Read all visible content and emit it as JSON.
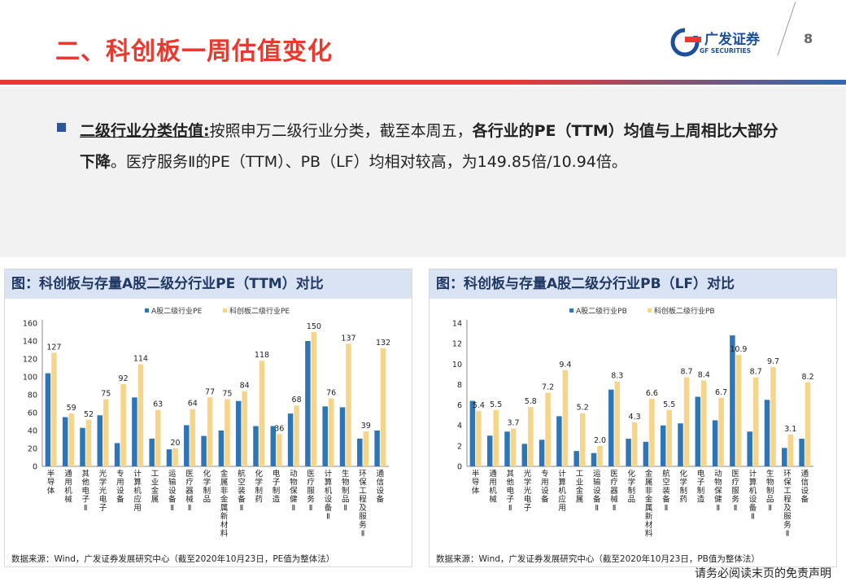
{
  "header": {
    "title": "二、科创板一周估值变化",
    "logo_cn": "广发证券",
    "logo_en": "GF SECURITIES",
    "page_number": "8"
  },
  "summary": {
    "label": "二级行业分类估值:",
    "text1": "按照申万二级行业分类，截至本周五，",
    "bold": "各行业的PE（TTM）均值与上周相比大部分下降",
    "text2": "。医疗服务Ⅱ的PE（TTM）、PB（LF）均相对较高，为149.85倍/10.94倍。"
  },
  "colors": {
    "a_share": "#2e75b6",
    "star": "#f6d48a",
    "accent": "#e8392f"
  },
  "chart_data": [
    {
      "type": "bar",
      "panel_title": "图：科创板与存量A股二级分行业PE（TTM）对比",
      "source": "数据来源：Wind，广发证券发展研究中心（截至2020年10月23日，PE值为整体法）",
      "categories": [
        "半导体",
        "通用机械",
        "其他电子Ⅱ",
        "光学光电子",
        "专用设备",
        "计算机应用",
        "工业金属",
        "运输设备Ⅱ",
        "医疗器械Ⅱ",
        "化学制品",
        "金属非金属新材料",
        "航空装备Ⅱ",
        "化学制药",
        "电子制造",
        "动物保健Ⅱ",
        "医疗服务Ⅱ",
        "计算机设备Ⅱ",
        "生物制品Ⅱ",
        "环保工程及服务Ⅱ",
        "通信设备"
      ],
      "series": [
        {
          "name": "A股二级行业PE",
          "values": [
            104,
            55,
            43,
            57,
            26,
            77,
            31,
            19,
            46,
            34,
            40,
            73,
            45,
            45,
            59,
            140,
            67,
            66,
            31,
            40
          ]
        },
        {
          "name": "科创板二级行业PE",
          "values": [
            127,
            59,
            52,
            75,
            92,
            114,
            63,
            20,
            64,
            77,
            75,
            84,
            118,
            36,
            68,
            150,
            76,
            137,
            39,
            132
          ]
        }
      ],
      "labels": [
        "127",
        "59",
        "52",
        "75",
        "92",
        "114",
        "63",
        "20",
        "64",
        "77",
        "75",
        "84",
        "118",
        "36",
        "68",
        "150",
        "76",
        "137",
        "39",
        "132"
      ],
      "yticks": [
        "0",
        "20",
        "40",
        "60",
        "80",
        "100",
        "120",
        "140",
        "160"
      ],
      "ylim": [
        0,
        160
      ]
    },
    {
      "type": "bar",
      "panel_title": "图：科创板与存量A股二级分行业PB（LF）对比",
      "source": "数据来源：Wind，广发证券发展研究中心（截至2020年10月23日，PB值为整体法）",
      "categories": [
        "半导体",
        "通用机械",
        "其他电子Ⅱ",
        "光学光电子",
        "专用设备",
        "计算机应用",
        "工业金属",
        "运输设备Ⅱ",
        "医疗器械Ⅱ",
        "化学制品",
        "金属非金属新材料",
        "航空装备Ⅱ",
        "化学制药",
        "电子制造",
        "动物保健Ⅱ",
        "医疗服务Ⅱ",
        "计算机设备Ⅱ",
        "生物制品Ⅱ",
        "环保工程及服务Ⅱ",
        "通信设备"
      ],
      "series": [
        {
          "name": "A股二级行业PB",
          "values": [
            6.4,
            3.0,
            3.4,
            2.2,
            2.6,
            4.9,
            1.5,
            1.3,
            7.5,
            2.7,
            2.4,
            4.0,
            4.2,
            6.8,
            4.5,
            12.8,
            3.4,
            6.5,
            1.8,
            2.7
          ]
        },
        {
          "name": "科创板二级行业PB",
          "values": [
            5.4,
            5.5,
            3.7,
            5.8,
            7.2,
            9.4,
            5.2,
            2.0,
            8.3,
            4.3,
            6.6,
            5.5,
            8.7,
            8.4,
            6.7,
            10.9,
            8.7,
            9.7,
            3.1,
            8.2
          ]
        }
      ],
      "labels": [
        "5.4",
        "5.5",
        "3.7",
        "5.8",
        "7.2",
        "9.4",
        "5.2",
        "2.0",
        "8.3",
        "4.3",
        "6.6",
        "5.5",
        "8.7",
        "8.4",
        "6.7",
        "10.9",
        "8.7",
        "9.7",
        "3.1",
        "8.2"
      ],
      "yticks": [
        "0",
        "2",
        "4",
        "6",
        "8",
        "10",
        "12",
        "14"
      ],
      "ylim": [
        0,
        14
      ]
    }
  ],
  "footer": "请务必阅读末页的免责声明"
}
